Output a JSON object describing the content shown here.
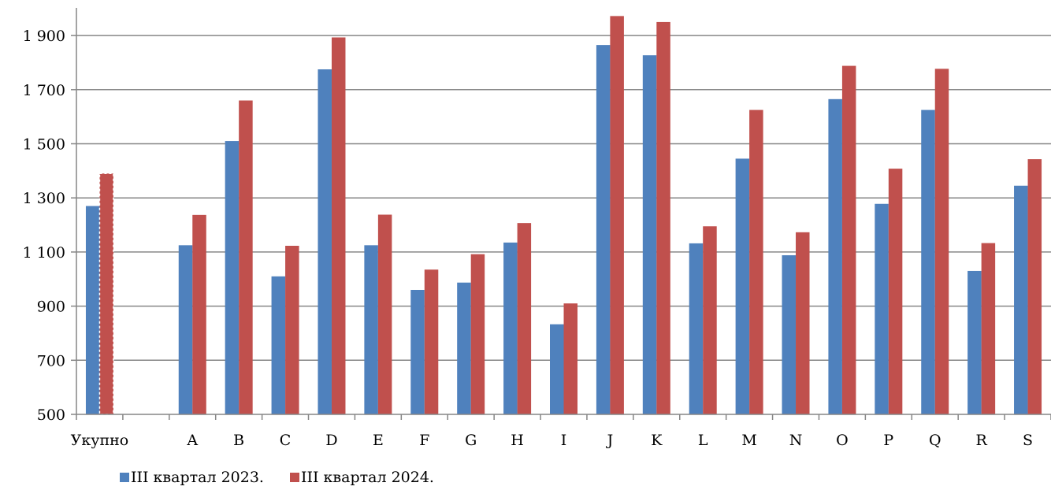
{
  "chart_data": {
    "type": "bar",
    "categories": [
      "Укупно",
      "",
      "A",
      "B",
      "C",
      "D",
      "E",
      "F",
      "G",
      "H",
      "I",
      "J",
      "K",
      "L",
      "M",
      "N",
      "O",
      "P",
      "Q",
      "R",
      "S"
    ],
    "series": [
      {
        "name": "III квартал 2023.",
        "color": "#4F81BD",
        "values": [
          1270,
          null,
          1125,
          1510,
          1010,
          1775,
          1125,
          960,
          987,
          1135,
          833,
          1865,
          1827,
          1132,
          1445,
          1088,
          1665,
          1278,
          1625,
          1030,
          1345
        ]
      },
      {
        "name": "III квартал 2024.",
        "color": "#C0504D",
        "values": [
          1390,
          null,
          1237,
          1660,
          1123,
          1893,
          1238,
          1035,
          1092,
          1207,
          910,
          1972,
          1950,
          1195,
          1625,
          1173,
          1788,
          1408,
          1777,
          1133,
          1443
        ]
      }
    ],
    "yticks": [
      "500",
      "700",
      "900",
      "1 100",
      "1 300",
      "1 500",
      "1 700",
      "1 900"
    ],
    "ylim": [
      500,
      2000
    ],
    "grid": true,
    "legend": "bottom-left",
    "title": "",
    "xlabel": "",
    "ylabel": ""
  }
}
